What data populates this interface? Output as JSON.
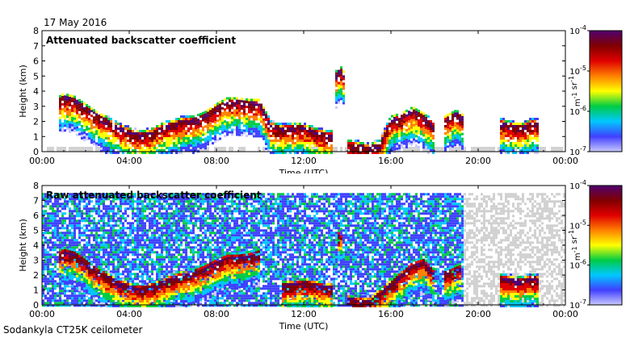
{
  "date": "17 May 2016",
  "footer": "Sodankyla CT25K ceilometer",
  "chart_data": [
    {
      "type": "heatmap",
      "title": "Attenuated backscatter coefficient",
      "xlabel": "Time (UTC)",
      "ylabel": "Height (km)",
      "xlim": [
        0,
        24
      ],
      "ylim": [
        0,
        8
      ],
      "x_ticks": [
        "00:00",
        "04:00",
        "08:00",
        "12:00",
        "16:00",
        "20:00",
        "00:00"
      ],
      "y_ticks": [
        "0",
        "1",
        "2",
        "3",
        "4",
        "5",
        "6",
        "7",
        "8"
      ],
      "colorbar": {
        "scale": "log",
        "labels": [
          "10-4",
          "10-5",
          "10-6",
          "10-7"
        ],
        "unit": "m-1 sr-1",
        "range": [
          1e-07,
          0.0001
        ]
      },
      "layers": [
        {
          "t": [
            0.8,
            1.0,
            1.5,
            2.0,
            2.5,
            3.0,
            3.5,
            4.0,
            4.5,
            5.0,
            5.5,
            6.0,
            6.5,
            7.0,
            7.5,
            8.0,
            8.5,
            9.0,
            9.5,
            10.0,
            10.5,
            11.0,
            11.5,
            12.0,
            12.5,
            13.0,
            13.3
          ],
          "h": [
            3.5,
            3.7,
            3.5,
            3.0,
            2.5,
            2.1,
            1.7,
            1.4,
            1.2,
            1.3,
            1.7,
            1.9,
            2.1,
            2.2,
            2.5,
            3.0,
            3.4,
            3.4,
            3.3,
            3.3,
            1.8,
            1.6,
            1.7,
            1.7,
            1.4,
            1.2,
            1.2
          ]
        },
        {
          "t": [
            13.5,
            13.7,
            13.9
          ],
          "h": [
            5.2,
            5.5,
            5.0
          ]
        },
        {
          "t": [
            14.0,
            14.5,
            15.0,
            15.5,
            16.0,
            16.5,
            17.0,
            17.5,
            18.0
          ],
          "h": [
            0.6,
            0.5,
            0.3,
            0.6,
            2.2,
            2.4,
            2.8,
            2.4,
            1.8
          ]
        },
        {
          "t": [
            18.5,
            19.0,
            19.3
          ],
          "h": [
            2.2,
            2.6,
            2.3
          ]
        },
        {
          "t": [
            21.0,
            21.5,
            22.0,
            22.5,
            22.8
          ],
          "h": [
            2.0,
            1.8,
            1.7,
            2.0,
            1.9
          ]
        }
      ]
    },
    {
      "type": "heatmap",
      "title": "Raw attenuated backscatter coefficient",
      "xlabel": "Time (UTC)",
      "ylabel": "Height (km)",
      "xlim": [
        0,
        24
      ],
      "ylim": [
        0,
        8
      ],
      "x_ticks": [
        "00:00",
        "04:00",
        "08:00",
        "12:00",
        "16:00",
        "20:00",
        "00:00"
      ],
      "y_ticks": [
        "0",
        "1",
        "2",
        "3",
        "4",
        "5",
        "6",
        "7",
        "8"
      ],
      "colorbar": {
        "scale": "log",
        "labels": [
          "10-4",
          "10-5",
          "10-6",
          "10-7"
        ],
        "unit": "m-1 sr-1",
        "range": [
          1e-07,
          0.0001
        ]
      },
      "noise_top_km": 7.5,
      "layers": [
        {
          "t": [
            0.8,
            1.0,
            1.5,
            2.0,
            2.5,
            3.0,
            3.5,
            4.0,
            4.5,
            5.0,
            5.5,
            6.0,
            6.5,
            7.0,
            7.5,
            8.0,
            8.5,
            9.0,
            9.5,
            10.0
          ],
          "h": [
            3.5,
            3.7,
            3.5,
            3.0,
            2.4,
            2.0,
            1.6,
            1.3,
            1.2,
            1.3,
            1.6,
            1.9,
            2.1,
            2.3,
            2.6,
            3.0,
            3.3,
            3.3,
            3.4,
            3.6
          ]
        },
        {
          "t": [
            11.0,
            11.5,
            12.0,
            12.5,
            13.0,
            13.3
          ],
          "h": [
            1.4,
            1.5,
            1.6,
            1.5,
            1.3,
            1.3
          ]
        },
        {
          "t": [
            13.6,
            13.8
          ],
          "h": [
            4.8,
            5.0
          ]
        },
        {
          "t": [
            14.0,
            15.0,
            16.0,
            17.0,
            17.5,
            18.0
          ],
          "h": [
            0.5,
            0.3,
            1.5,
            2.8,
            3.0,
            2.2
          ]
        },
        {
          "t": [
            18.5,
            19.2
          ],
          "h": [
            2.2,
            2.6
          ]
        },
        {
          "t": [
            21.0,
            22.0,
            22.5,
            22.8
          ],
          "h": [
            1.9,
            1.7,
            1.9,
            1.8
          ]
        }
      ]
    }
  ]
}
